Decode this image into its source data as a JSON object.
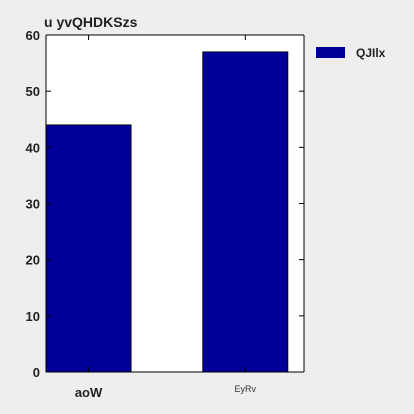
{
  "chart_data": {
    "type": "bar",
    "title": "u  yvQHDKSzs",
    "categories": [
      "aoW",
      "EyRv"
    ],
    "series": [
      {
        "name": "QJIlx",
        "values": [
          44,
          57
        ]
      }
    ],
    "ylim": [
      0,
      60
    ],
    "yticks": [
      0,
      10,
      20,
      30,
      40,
      50,
      60
    ],
    "xlabel": "",
    "ylabel": "",
    "grid": false,
    "legend": "top-right",
    "colors": {
      "series": "#000099",
      "plot_bg": "#ffffff",
      "page_bg": "#eeeeee"
    }
  }
}
